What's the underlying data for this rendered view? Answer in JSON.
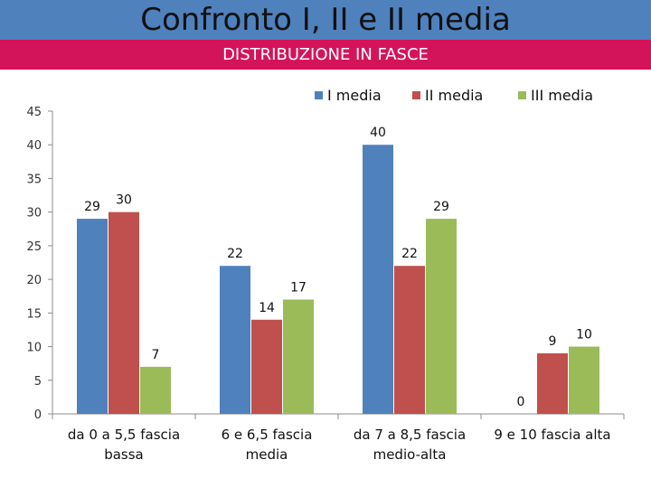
{
  "header": {
    "title": "Confronto I, II e II media",
    "subtitle": "DISTRIBUZIONE IN FASCE",
    "title_bg": "#4f81bd",
    "subtitle_bg": "#d4145a"
  },
  "chart_data": {
    "type": "bar",
    "title": "",
    "xlabel": "",
    "ylabel": "",
    "ylim": [
      0,
      45
    ],
    "yticks": [
      0,
      5,
      10,
      15,
      20,
      25,
      30,
      35,
      40,
      45
    ],
    "grid": false,
    "legend_position": "top-right",
    "categories": [
      [
        "da 0 a 5,5 fascia",
        "bassa"
      ],
      [
        "6 e 6,5 fascia",
        "media"
      ],
      [
        "da 7 a 8,5 fascia",
        "medio-alta"
      ],
      [
        "9 e 10 fascia alta"
      ]
    ],
    "series": [
      {
        "name": "I media",
        "color": "#4f81bd",
        "values": [
          29,
          22,
          40,
          0
        ]
      },
      {
        "name": "II media",
        "color": "#c0504d",
        "values": [
          30,
          14,
          22,
          9
        ]
      },
      {
        "name": "III media",
        "color": "#9bbb59",
        "values": [
          7,
          17,
          29,
          10
        ]
      }
    ]
  }
}
